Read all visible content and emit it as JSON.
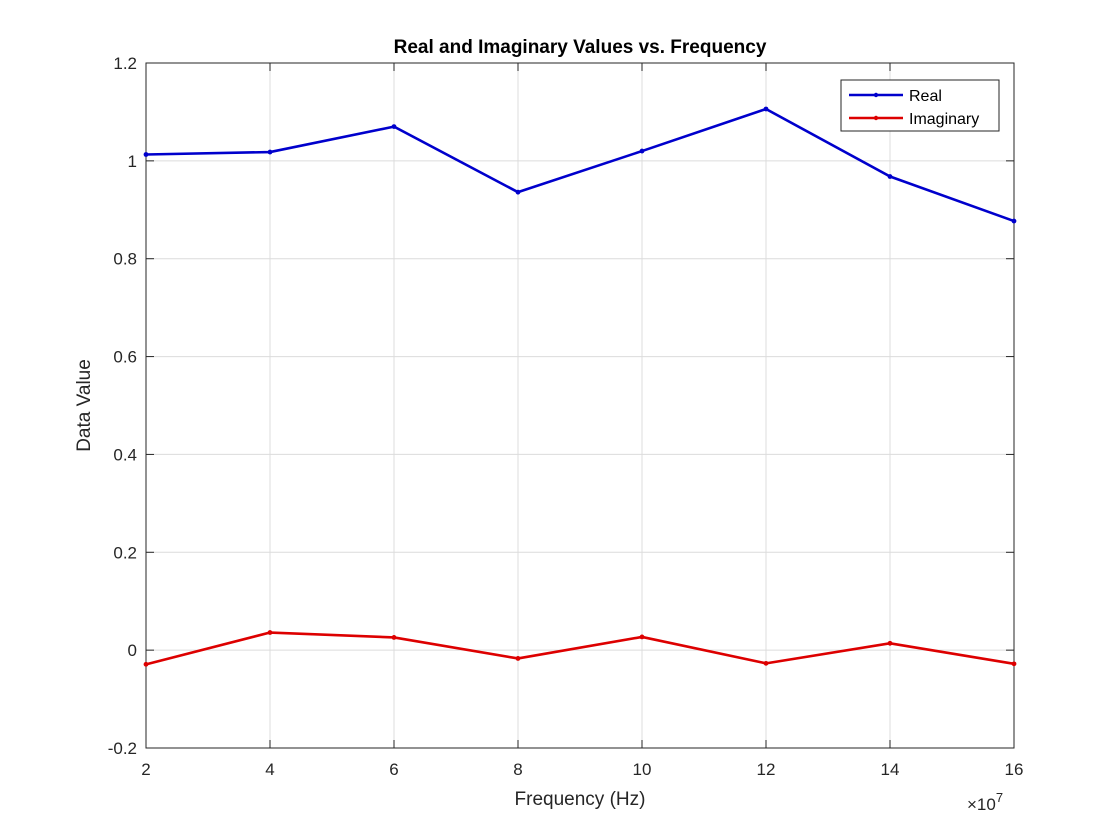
{
  "chart_data": {
    "type": "line",
    "title": "Real and Imaginary Values vs. Frequency",
    "xlabel": "Frequency (Hz)",
    "ylabel": "Data Value",
    "x_exponent_label": "×10",
    "x_exponent_power": "7",
    "x": [
      2,
      4,
      6,
      8,
      10,
      12,
      14,
      16
    ],
    "xlim": [
      2,
      16
    ],
    "ylim": [
      -0.2,
      1.2
    ],
    "xticks": [
      2,
      4,
      6,
      8,
      10,
      12,
      14,
      16
    ],
    "yticks": [
      -0.2,
      0,
      0.2,
      0.4,
      0.6,
      0.8,
      1,
      1.2
    ],
    "xtick_labels": [
      "2",
      "4",
      "6",
      "8",
      "10",
      "12",
      "14",
      "16"
    ],
    "ytick_labels": [
      "-0.2",
      "0",
      "0.2",
      "0.4",
      "0.6",
      "0.8",
      "1",
      "1.2"
    ],
    "grid": true,
    "legend_position": "top-right",
    "series": [
      {
        "name": "Real",
        "color": "#0000cc",
        "values": [
          1.013,
          1.018,
          1.07,
          0.936,
          1.02,
          1.106,
          0.968,
          0.877
        ]
      },
      {
        "name": "Imaginary",
        "color": "#dd0000",
        "values": [
          -0.029,
          0.036,
          0.026,
          -0.017,
          0.027,
          -0.027,
          0.014,
          -0.028
        ]
      }
    ]
  }
}
